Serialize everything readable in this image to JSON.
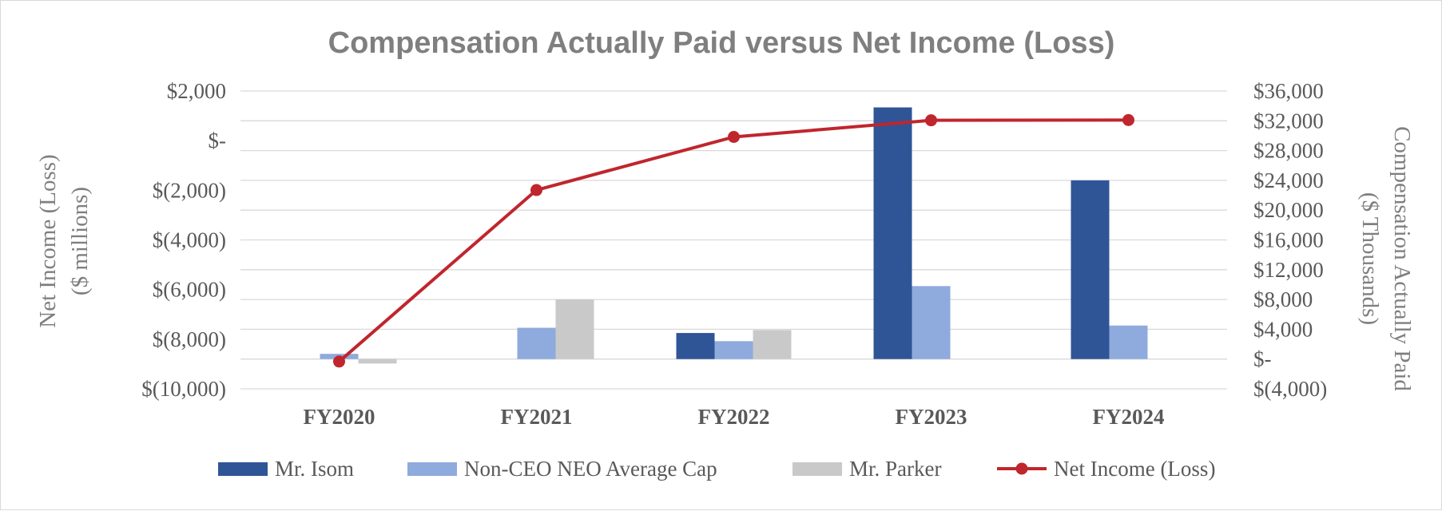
{
  "chart_data": {
    "type": "bar+line",
    "title": "Compensation Actually Paid versus Net Income (Loss)",
    "categories": [
      "FY2020",
      "FY2021",
      "FY2022",
      "FY2023",
      "FY2024"
    ],
    "left_axis": {
      "label_line1": "Net Income (Loss)",
      "label_line2": "($ millions)",
      "ylim": [
        -10000,
        2000
      ],
      "ticks": [
        {
          "value": 2000,
          "label": "$2,000"
        },
        {
          "value": 0,
          "label": "$-"
        },
        {
          "value": -2000,
          "label": "$(2,000)"
        },
        {
          "value": -4000,
          "label": "$(4,000)"
        },
        {
          "value": -6000,
          "label": "$(6,000)"
        },
        {
          "value": -8000,
          "label": "$(8,000)"
        },
        {
          "value": -10000,
          "label": "$(10,000)"
        }
      ]
    },
    "right_axis": {
      "label_line1": "Compensation Actually Paid",
      "label_line2": "($ Thousands)",
      "ylim": [
        -4000,
        36000
      ],
      "ticks": [
        {
          "value": 36000,
          "label": "$36,000"
        },
        {
          "value": 32000,
          "label": "$32,000"
        },
        {
          "value": 28000,
          "label": "$28,000"
        },
        {
          "value": 24000,
          "label": "$24,000"
        },
        {
          "value": 20000,
          "label": "$20,000"
        },
        {
          "value": 16000,
          "label": "$16,000"
        },
        {
          "value": 12000,
          "label": "$12,000"
        },
        {
          "value": 8000,
          "label": "$8,000"
        },
        {
          "value": 4000,
          "label": "$4,000"
        },
        {
          "value": 0,
          "label": "$-"
        },
        {
          "value": -4000,
          "label": "$(4,000)"
        }
      ]
    },
    "series": [
      {
        "name": "Mr. Isom",
        "kind": "bar",
        "axis": "right",
        "color": "#2f5597",
        "values": [
          null,
          null,
          3500,
          33800,
          24000
        ]
      },
      {
        "name": "Non-CEO NEO Average Cap",
        "kind": "bar",
        "axis": "right",
        "color": "#8faadc",
        "values": [
          700,
          4200,
          2400,
          9800,
          4500
        ]
      },
      {
        "name": "Mr. Parker",
        "kind": "bar",
        "axis": "right",
        "color": "#c9c9c9",
        "values": [
          -600,
          8000,
          3900,
          null,
          null
        ]
      },
      {
        "name": "Net Income (Loss)",
        "kind": "line",
        "axis": "left",
        "color": "#c0262d",
        "values": [
          -8900,
          -1990,
          150,
          820,
          830
        ]
      }
    ],
    "legend_position": "bottom"
  }
}
